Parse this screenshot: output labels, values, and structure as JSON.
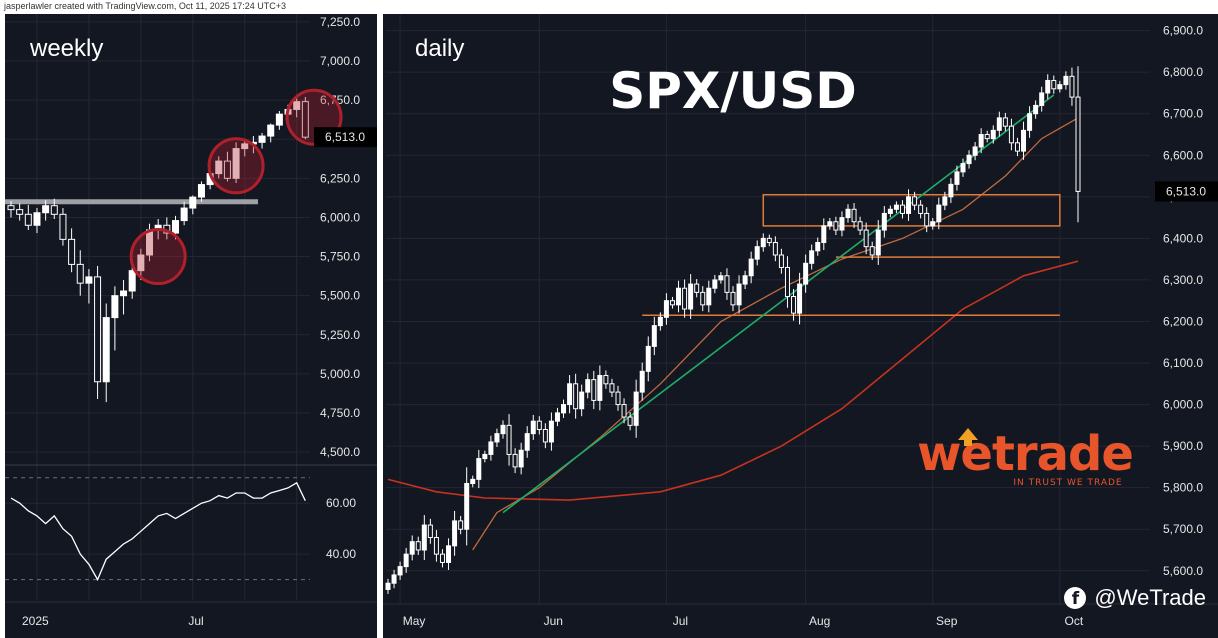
{
  "header": {
    "credit": "jasperlawler created with TradingView.com, Oct 11, 2025 17:24 UTC+3"
  },
  "brand": {
    "name": "wetrade",
    "tagline": "IN TRUST WE TRADE",
    "handle": "@WeTrade",
    "handle_icon": "facebook-icon",
    "color": "#e8552a"
  },
  "colors": {
    "background": "#131722",
    "grid": "#242733",
    "up": "#ffffff",
    "down": "#ffffff",
    "trendline": "#1fae6a",
    "ma_fast": "#c06a3c",
    "ma_slow": "#c8321e",
    "zone": "#e07b39",
    "circle": "#b0202a",
    "rsi": "#ffffff",
    "support": "#9ea0a6"
  },
  "chart_data": [
    {
      "panel": "weekly",
      "type": "candlestick",
      "title": "weekly",
      "xlabel": "",
      "ylabel": "",
      "x_ticks": [
        "2025",
        "Jul"
      ],
      "y_ticks": [
        "7,250.0",
        "7,000.0",
        "6,750.0",
        "6,500.0",
        "6,250.0",
        "6,000.0",
        "5,750.0",
        "5,500.0",
        "5,250.0",
        "5,000.0",
        "4,750.0",
        "4,500.0"
      ],
      "ylim": [
        4450,
        7300
      ],
      "last_price": "6,513.0",
      "last_value": 6513,
      "support_level": 6100,
      "highlight_circles": [
        {
          "index": 17,
          "price": 5750
        },
        {
          "index": 26,
          "price": 6330
        },
        {
          "index": 35,
          "price": 6640
        }
      ],
      "candles": [
        [
          6075,
          6105,
          6000,
          6050
        ],
        [
          6050,
          6090,
          5980,
          6020
        ],
        [
          6020,
          6080,
          5920,
          5950
        ],
        [
          5950,
          6060,
          5900,
          6030
        ],
        [
          6030,
          6110,
          5980,
          6075
        ],
        [
          6075,
          6120,
          5990,
          6020
        ],
        [
          6020,
          6060,
          5820,
          5860
        ],
        [
          5860,
          5930,
          5650,
          5700
        ],
        [
          5700,
          5790,
          5500,
          5580
        ],
        [
          5580,
          5670,
          5450,
          5620
        ],
        [
          5620,
          5690,
          4840,
          4950
        ],
        [
          4950,
          5450,
          4820,
          5360
        ],
        [
          5360,
          5560,
          5150,
          5500
        ],
        [
          5500,
          5600,
          5380,
          5530
        ],
        [
          5530,
          5700,
          5480,
          5660
        ],
        [
          5660,
          5800,
          5600,
          5760
        ],
        [
          5760,
          5960,
          5720,
          5920
        ],
        [
          5920,
          5990,
          5860,
          5950
        ],
        [
          5950,
          6000,
          5860,
          5900
        ],
        [
          5900,
          6010,
          5860,
          5980
        ],
        [
          5980,
          6100,
          5950,
          6060
        ],
        [
          6060,
          6140,
          6020,
          6130
        ],
        [
          6130,
          6230,
          6100,
          6210
        ],
        [
          6210,
          6300,
          6180,
          6280
        ],
        [
          6280,
          6390,
          6250,
          6360
        ],
        [
          6360,
          6420,
          6230,
          6250
        ],
        [
          6250,
          6480,
          6220,
          6440
        ],
        [
          6440,
          6500,
          6390,
          6470
        ],
        [
          6470,
          6520,
          6410,
          6480
        ],
        [
          6480,
          6540,
          6440,
          6520
        ],
        [
          6520,
          6600,
          6480,
          6590
        ],
        [
          6590,
          6680,
          6560,
          6660
        ],
        [
          6660,
          6720,
          6600,
          6690
        ],
        [
          6690,
          6760,
          6640,
          6740
        ],
        [
          6740,
          6770,
          6500,
          6513
        ]
      ],
      "rsi": {
        "y_ticks": [
          "60.00",
          "40.00"
        ],
        "ylim": [
          22,
          75
        ],
        "values": [
          62,
          60,
          57,
          55,
          52,
          55,
          50,
          47,
          40,
          36,
          30,
          38,
          41,
          44,
          46,
          49,
          52,
          55,
          56,
          54,
          56,
          58,
          60,
          61,
          63,
          62,
          64,
          64,
          62,
          62,
          64,
          65,
          66,
          68,
          61
        ]
      }
    },
    {
      "panel": "daily",
      "type": "candlestick",
      "title": "daily",
      "headline": "SPX/USD",
      "xlabel": "",
      "ylabel": "",
      "x_ticks": [
        "May",
        "Jun",
        "Jul",
        "Aug",
        "Sep",
        "Oct"
      ],
      "y_ticks": [
        "6,900.0",
        "6,800.0",
        "6,700.0",
        "6,600.0",
        "6,500.0",
        "6,400.0",
        "6,300.0",
        "6,200.0",
        "6,100.0",
        "6,000.0",
        "5,900.0",
        "5,800.0",
        "5,700.0",
        "5,600.0"
      ],
      "ylim": [
        5520,
        6940
      ],
      "last_price": "6,513.0",
      "last_value": 6513,
      "zones": [
        {
          "type": "box",
          "from_index": 62,
          "to_index": 111,
          "low": 6430,
          "high": 6505
        },
        {
          "type": "line",
          "from_index": 74,
          "to_index": 111,
          "level": 6355
        },
        {
          "type": "line",
          "from_index": 42,
          "to_index": 111,
          "level": 6215
        }
      ],
      "trendline": {
        "from_index": 19,
        "from_price": 5740,
        "to_index": 110,
        "to_price": 6745
      },
      "close": [
        5570,
        5590,
        5610,
        5640,
        5670,
        5650,
        5710,
        5680,
        5640,
        5620,
        5660,
        5720,
        5700,
        5810,
        5820,
        5870,
        5880,
        5910,
        5930,
        5950,
        5880,
        5850,
        5890,
        5930,
        5960,
        5940,
        5910,
        5960,
        5980,
        6000,
        6050,
        5990,
        6030,
        6060,
        6010,
        6070,
        6050,
        6030,
        6000,
        5970,
        5950,
        6030,
        6080,
        6140,
        6190,
        6210,
        6250,
        6240,
        6280,
        6230,
        6290,
        6270,
        6240,
        6280,
        6300,
        6310,
        6270,
        6240,
        6290,
        6310,
        6350,
        6380,
        6400,
        6390,
        6360,
        6330,
        6260,
        6220,
        6290,
        6340,
        6370,
        6390,
        6430,
        6440,
        6420,
        6450,
        6470,
        6440,
        6420,
        6380,
        6360,
        6420,
        6460,
        6470,
        6480,
        6460,
        6500,
        6480,
        6460,
        6430,
        6440,
        6480,
        6500,
        6530,
        6560,
        6580,
        6600,
        6620,
        6650,
        6640,
        6660,
        6690,
        6670,
        6630,
        6610,
        6660,
        6700,
        6720,
        6750,
        6780,
        6760,
        6770,
        6790,
        6740,
        6513
      ],
      "ma_fast": [
        {
          "i": 14,
          "v": 5650
        },
        {
          "i": 18,
          "v": 5740
        },
        {
          "i": 25,
          "v": 5800
        },
        {
          "i": 35,
          "v": 5920
        },
        {
          "i": 45,
          "v": 6050
        },
        {
          "i": 55,
          "v": 6200
        },
        {
          "i": 65,
          "v": 6280
        },
        {
          "i": 75,
          "v": 6350
        },
        {
          "i": 85,
          "v": 6400
        },
        {
          "i": 95,
          "v": 6470
        },
        {
          "i": 102,
          "v": 6550
        },
        {
          "i": 108,
          "v": 6640
        },
        {
          "i": 114,
          "v": 6690
        }
      ],
      "ma_slow": [
        {
          "i": 0,
          "v": 5820
        },
        {
          "i": 8,
          "v": 5790
        },
        {
          "i": 16,
          "v": 5775
        },
        {
          "i": 30,
          "v": 5770
        },
        {
          "i": 45,
          "v": 5790
        },
        {
          "i": 55,
          "v": 5830
        },
        {
          "i": 65,
          "v": 5900
        },
        {
          "i": 75,
          "v": 5990
        },
        {
          "i": 85,
          "v": 6110
        },
        {
          "i": 95,
          "v": 6230
        },
        {
          "i": 105,
          "v": 6310
        },
        {
          "i": 114,
          "v": 6345
        }
      ]
    }
  ]
}
